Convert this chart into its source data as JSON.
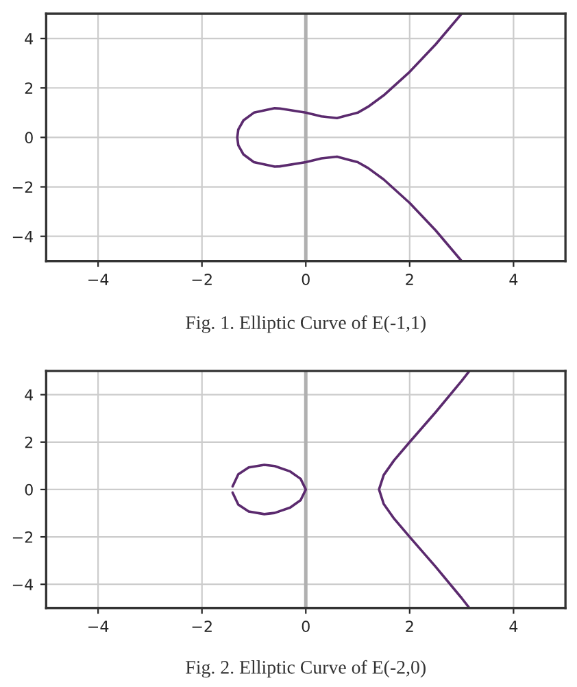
{
  "chart_data": [
    {
      "type": "line",
      "xlim": [
        -5,
        5
      ],
      "ylim": [
        -5,
        5
      ],
      "xticks": [
        -4,
        -2,
        0,
        2,
        4
      ],
      "yticks": [
        -4,
        -2,
        0,
        2,
        4
      ],
      "grid": true,
      "legend": false,
      "ref_lines": [
        {
          "axis": "x",
          "value": 0,
          "color": "#b0b0b0"
        }
      ],
      "annotations": [
        "Fig. 1. Elliptic Curve of E(-1,1)"
      ],
      "series": [
        {
          "color": "#5b2a6e",
          "x": [
            3,
            2.5,
            2,
            1.5,
            1.2,
            1,
            0.6,
            0.3,
            0,
            -0.5,
            -0.6,
            -1,
            -1.2,
            -1.3,
            -1.32,
            -1.3,
            -1.2,
            -1,
            -0.6,
            -0.5,
            0,
            0.3,
            0.6,
            1,
            1.2,
            1.5,
            2,
            2.5,
            3
          ],
          "values": [
            -5,
            -3.76,
            -2.65,
            -1.7,
            -1.24,
            -1,
            -0.78,
            -0.85,
            -1,
            -1.17,
            -1.18,
            -1,
            -0.69,
            -0.32,
            0,
            0.32,
            0.69,
            1,
            1.18,
            1.17,
            1,
            0.85,
            0.78,
            1,
            1.24,
            1.7,
            2.65,
            3.76,
            5
          ]
        }
      ]
    },
    {
      "type": "line",
      "xlim": [
        -5,
        5
      ],
      "ylim": [
        -5,
        5
      ],
      "xticks": [
        -4,
        -2,
        0,
        2,
        4
      ],
      "yticks": [
        -4,
        -2,
        0,
        2,
        4
      ],
      "grid": true,
      "legend": false,
      "ref_lines": [
        {
          "axis": "x",
          "value": 0,
          "color": "#b0b0b0"
        }
      ],
      "annotations": [
        "Fig. 2. Elliptic Curve of E(-2,0)"
      ],
      "series": [
        {
          "color": "#5b2a6e",
          "x": [
            -1.41,
            -1.3,
            -1.1,
            -0.8,
            -0.6,
            -0.3,
            -0.1,
            0,
            -0.1,
            -0.3,
            -0.6,
            -0.8,
            -1.1,
            -1.3,
            -1.41
          ],
          "values": [
            0.13,
            0.64,
            0.93,
            1.04,
            0.99,
            0.76,
            0.45,
            0,
            -0.45,
            -0.76,
            -0.99,
            -1.04,
            -0.93,
            -0.64,
            -0.13
          ]
        },
        {
          "color": "#5b2a6e",
          "x": [
            3.15,
            3,
            2.5,
            2,
            1.7,
            1.5,
            1.41,
            1.5,
            1.7,
            2,
            2.5,
            3,
            3.15
          ],
          "values": [
            -5,
            -4.58,
            -3.26,
            -2,
            -1.23,
            -0.61,
            0,
            0.61,
            1.23,
            2,
            3.26,
            4.58,
            5
          ]
        }
      ]
    }
  ]
}
